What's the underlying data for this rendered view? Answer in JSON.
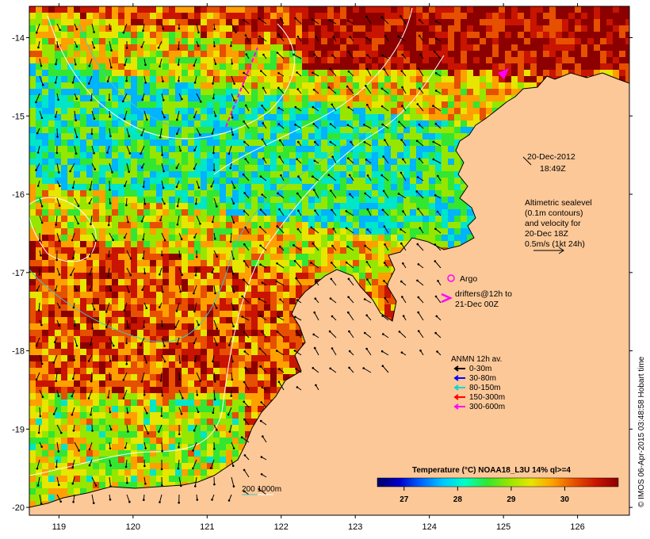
{
  "map": {
    "lat_ticks": [
      "-14",
      "-15",
      "-16",
      "-17",
      "-18",
      "-19",
      "-20"
    ],
    "lon_ticks": [
      "119",
      "120",
      "121",
      "122",
      "123",
      "124",
      "125",
      "126"
    ],
    "lat_range": [
      -20.1,
      -13.6
    ],
    "lon_range": [
      118.6,
      126.7
    ]
  },
  "annotations": {
    "date_line1": "20-Dec-2012",
    "date_line2": "18:49Z",
    "alt_line1": "Altimetric sealevel",
    "alt_line2": "(0.1m contours)",
    "alt_line3": "and velocity for",
    "alt_line4": "20-Dec 18Z",
    "alt_line5": "0.5m/s (1kt 24h)",
    "argo_label": "Argo",
    "drifters_line1": "drifters@12h to",
    "drifters_line2": "21-Dec 00Z"
  },
  "anmn_legend": {
    "title": "ANMN 12h av.",
    "items": [
      {
        "label": "0-30m",
        "color": "#000000"
      },
      {
        "label": "30-80m",
        "color": "#0000ff"
      },
      {
        "label": "80-150m",
        "color": "#00d8d8"
      },
      {
        "label": "150-300m",
        "color": "#ff0000"
      },
      {
        "label": "300-600m",
        "color": "#ff00ff"
      }
    ]
  },
  "isobath_legend": {
    "label": "200  1000m",
    "colors": [
      "#40c8c8",
      "#ffffff"
    ]
  },
  "colorbar": {
    "title": "Temperature (°C) NOAA18_L3U 14% ql>=4",
    "ticks": [
      "27",
      "28",
      "29",
      "30"
    ],
    "range": [
      26.5,
      31
    ],
    "colors": [
      "#000066",
      "#0000c8",
      "#0064ff",
      "#00c8ff",
      "#00ffc8",
      "#32e632",
      "#96e600",
      "#e6e600",
      "#ffa000",
      "#e65000",
      "#c81400",
      "#8c0000"
    ]
  },
  "credit": "© IMOS 06-Apr-2015 03:48:58 Hobart time",
  "colors": {
    "land": "#fcc898",
    "ocean_base": "#c86414"
  }
}
